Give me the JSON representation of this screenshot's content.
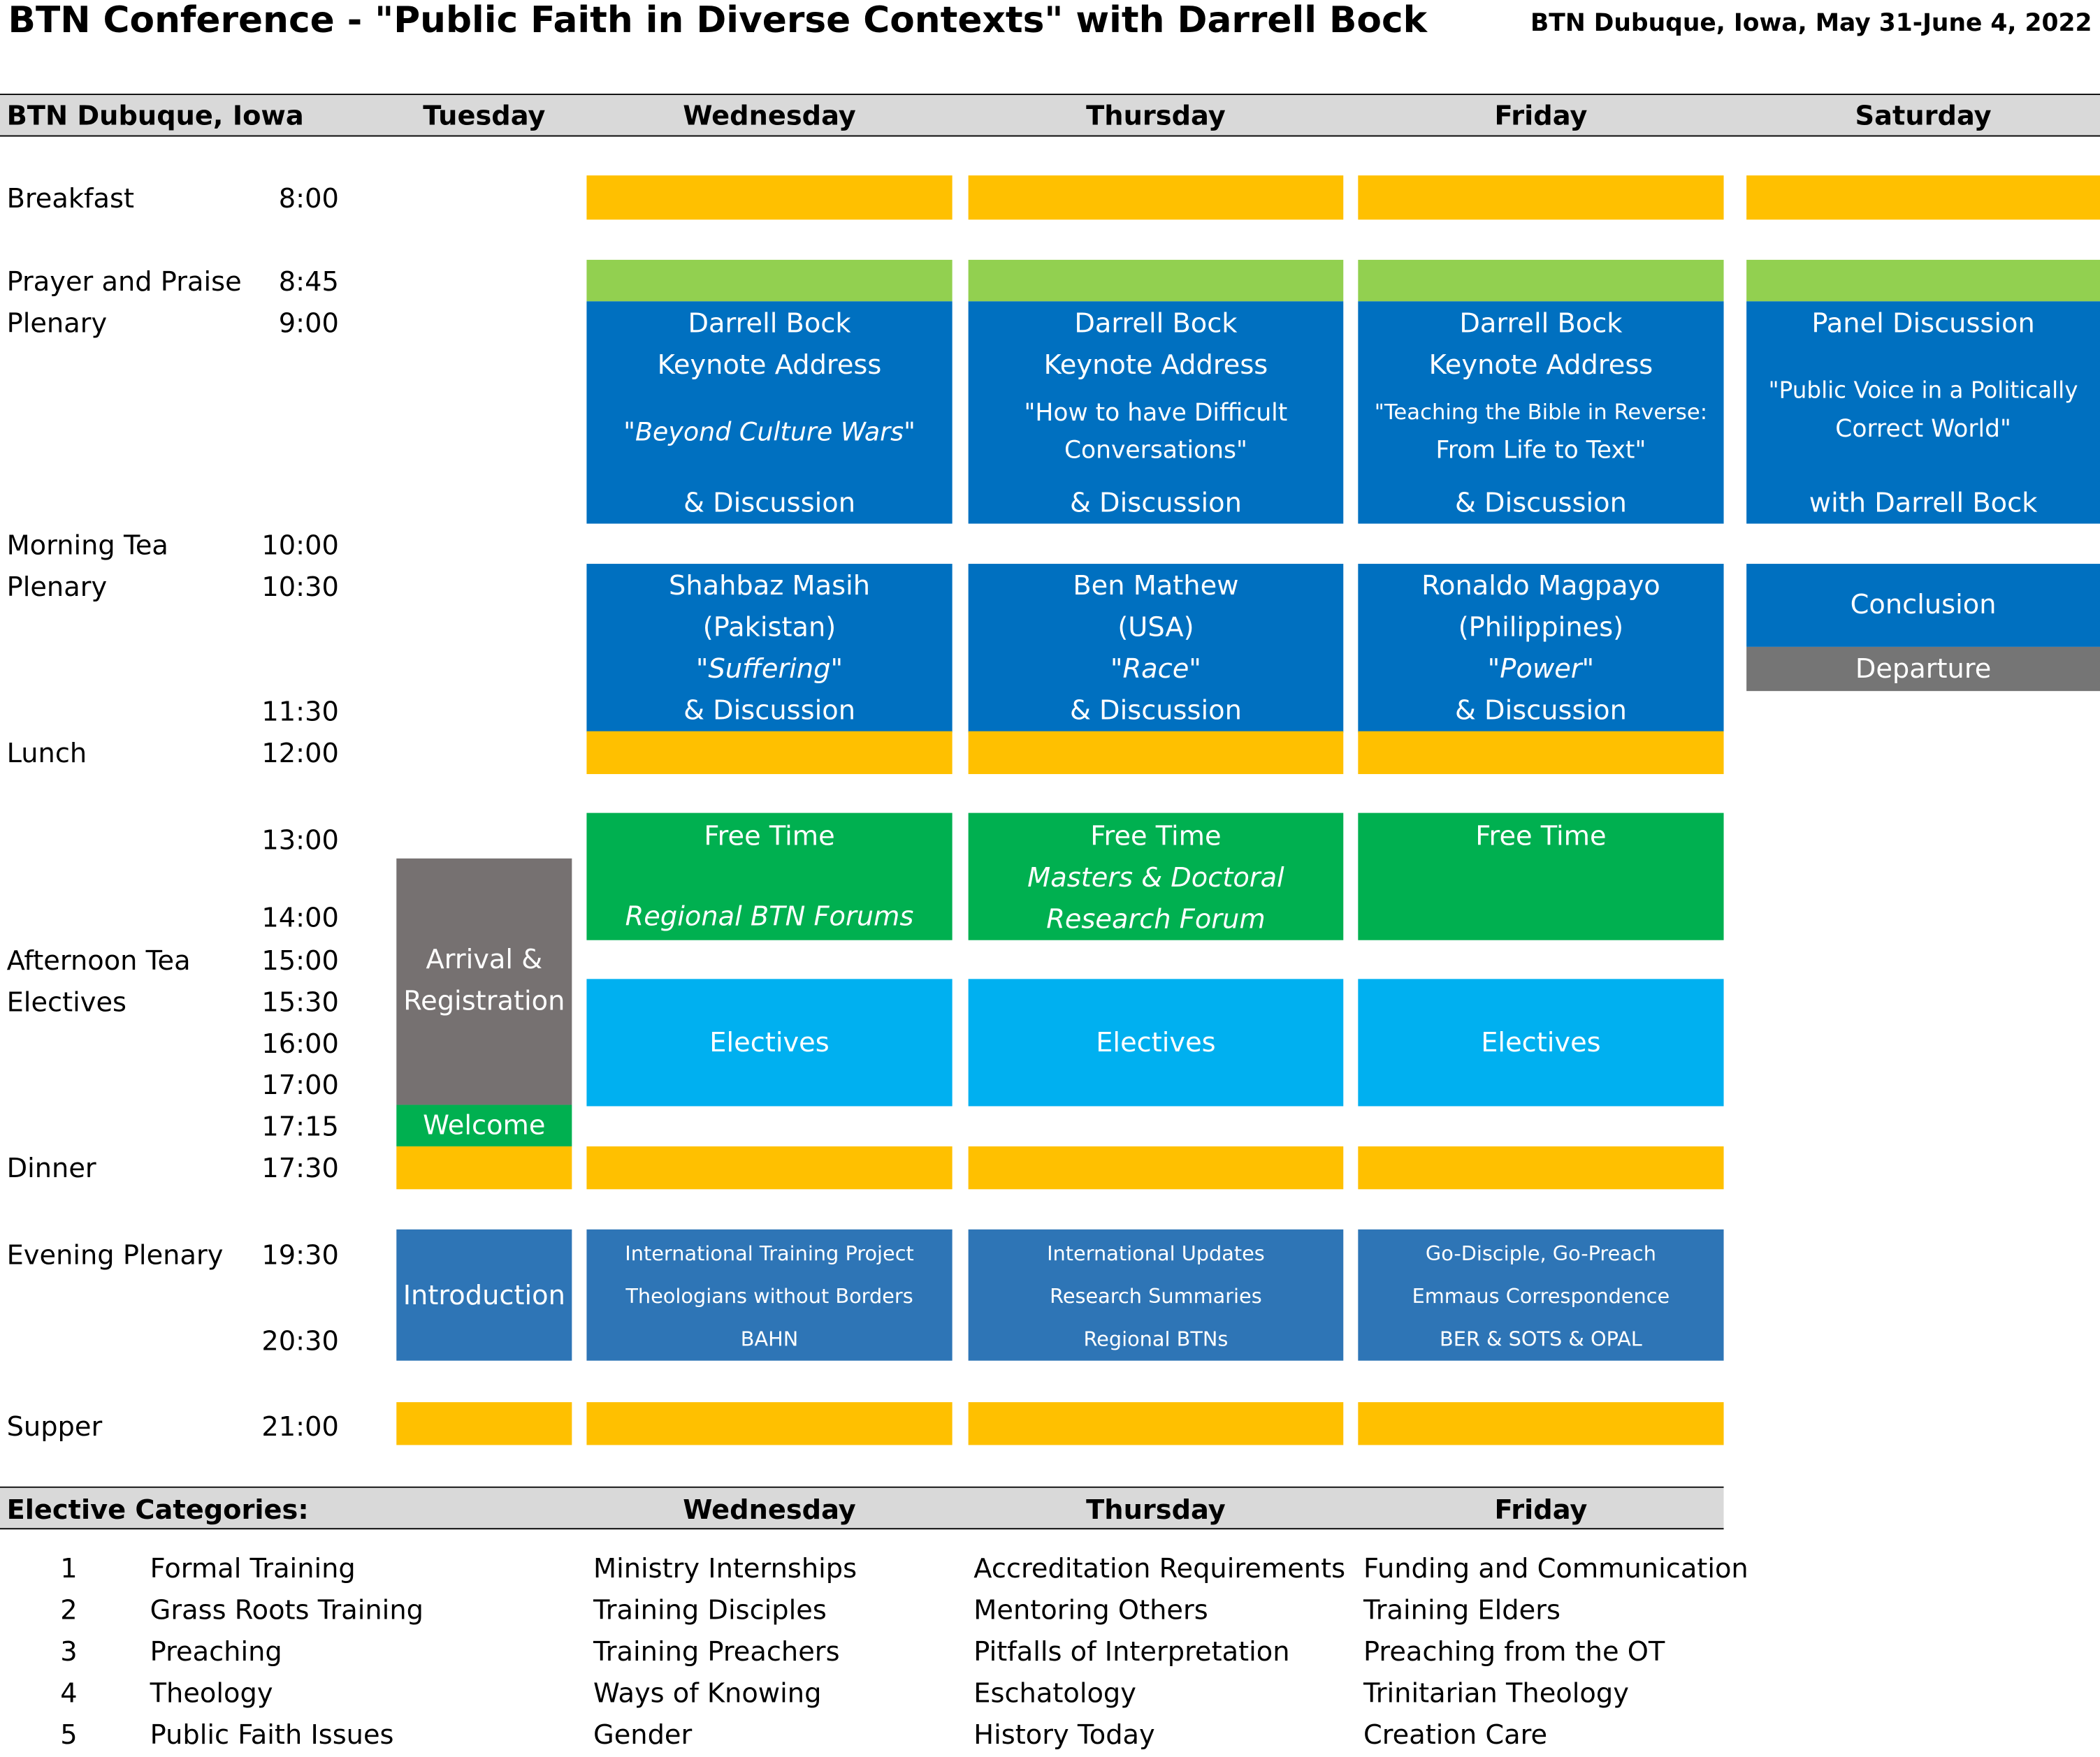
{
  "header": {
    "title": "BTN Conference - \"Public Faith in Diverse Contexts\" with Darrell Bock",
    "location_dates": "BTN Dubuque, Iowa, May 31-June 4, 2022"
  },
  "table_header": {
    "location": "BTN Dubuque, Iowa",
    "days": [
      "Tuesday",
      "Wednesday",
      "Thursday",
      "Friday",
      "Saturday"
    ]
  },
  "sessions": [
    {
      "label": "Breakfast",
      "time": "8:00"
    },
    {
      "label": "Prayer and Praise",
      "time": "8:45"
    },
    {
      "label": "Plenary",
      "time": "9:00"
    },
    {
      "label": "Morning Tea",
      "time": "10:00"
    },
    {
      "label": "Plenary",
      "time": "10:30"
    },
    {
      "label": "",
      "time": "11:30"
    },
    {
      "label": "Lunch",
      "time": "12:00"
    },
    {
      "label": "",
      "time": "13:00"
    },
    {
      "label": "",
      "time": "14:00"
    },
    {
      "label": "Afternoon Tea",
      "time": "15:00"
    },
    {
      "label": "Electives",
      "time": "15:30"
    },
    {
      "label": "",
      "time": "16:00"
    },
    {
      "label": "",
      "time": "17:00"
    },
    {
      "label": "",
      "time": "17:15"
    },
    {
      "label": "Dinner",
      "time": "17:30"
    },
    {
      "label": "Evening Plenary",
      "time": "19:30"
    },
    {
      "label": "",
      "time": "20:30"
    },
    {
      "label": "Supper",
      "time": "21:00"
    }
  ],
  "blocks": {
    "wed": {
      "keynote": {
        "speaker": "Darrell Bock",
        "kind": "Keynote Address",
        "topic": "\"Beyond Culture Wars\"",
        "discussion": "& Discussion"
      },
      "plenary2": {
        "speaker": "Shahbaz Masih",
        "country": "(Pakistan)",
        "topic": "\"Suffering\"",
        "discussion": "& Discussion"
      },
      "afternoon": {
        "title": "Free Time",
        "line2": "Regional BTN Forums"
      },
      "electives": "Electives",
      "evening": [
        "International Training Project",
        "Theologians without Borders",
        "BAHN"
      ]
    },
    "thu": {
      "keynote": {
        "speaker": "Darrell Bock",
        "kind": "Keynote Address",
        "topic1": "\"How to have Difficult",
        "topic2": "Conversations\"",
        "discussion": "& Discussion"
      },
      "plenary2": {
        "speaker": "Ben Mathew",
        "country": "(USA)",
        "topic": "\"Race\"",
        "discussion": "& Discussion"
      },
      "afternoon": {
        "title": "Free Time",
        "line2": "Masters & Doctoral",
        "line3": "Research Forum"
      },
      "electives": "Electives",
      "evening": [
        "International Updates",
        "Research Summaries",
        "Regional BTNs"
      ]
    },
    "fri": {
      "keynote": {
        "speaker": "Darrell Bock",
        "kind": "Keynote Address",
        "topic1": "\"Teaching the Bible in Reverse:",
        "topic2": "From Life to Text\"",
        "discussion": "& Discussion"
      },
      "plenary2": {
        "speaker": "Ronaldo Magpayo",
        "country": "(Philippines)",
        "topic": "\"Power\"",
        "discussion": "& Discussion"
      },
      "afternoon": {
        "title": "Free Time"
      },
      "electives": "Electives",
      "evening": [
        "Go-Disciple, Go-Preach",
        "Emmaus Correspondence",
        "BER & SOTS & OPAL"
      ]
    },
    "sat": {
      "keynote": {
        "title": "Panel Discussion",
        "topic1": "\"Public Voice in a Politically",
        "topic2": "Correct World\"",
        "with": "with Darrell Bock"
      },
      "conclusion": "Conclusion",
      "departure": "Departure"
    },
    "tue": {
      "arrival1": "Arrival &",
      "arrival2": "Registration",
      "welcome": "Welcome",
      "introduction": "Introduction"
    }
  },
  "electives_table": {
    "heading": "Elective Categories:",
    "days": [
      "Wednesday",
      "Thursday",
      "Friday"
    ],
    "rows": [
      {
        "num": "1",
        "category": "Formal Training",
        "wed": "Ministry Internships",
        "thu": "Accreditation Requirements",
        "fri": "Funding and Communication"
      },
      {
        "num": "2",
        "category": "Grass Roots Training",
        "wed": "Training Disciples",
        "thu": "Mentoring Others",
        "fri": "Training Elders"
      },
      {
        "num": "3",
        "category": "Preaching",
        "wed": "Training Preachers",
        "thu": "Pitfalls of Interpretation",
        "fri": "Preaching from the OT"
      },
      {
        "num": "4",
        "category": "Theology",
        "wed": "Ways of Knowing",
        "thu": "Eschatology",
        "fri": "Trinitarian Theology"
      },
      {
        "num": "5",
        "category": "Public Faith Issues",
        "wed": "Gender",
        "thu": "History Today",
        "fri": "Creation Care"
      }
    ]
  },
  "colors": {
    "meal": "#ffc000",
    "prayer": "#92d050",
    "plenary": "#0070c0",
    "free_time": "#00b050",
    "electives": "#00b0f0",
    "arrival": "#767171",
    "evening": "#2e75b6",
    "header_bar": "#d9d9d9"
  }
}
